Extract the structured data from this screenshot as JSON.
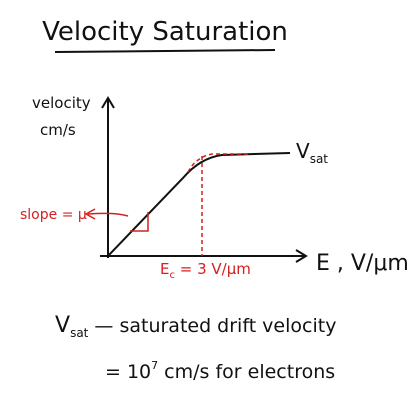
{
  "title": "Velocity Saturation",
  "y_axis": {
    "line1": "velocity",
    "line2": "cm/s"
  },
  "x_axis": "E , V/μm",
  "curve_label": {
    "main": "V",
    "sub": "sat"
  },
  "slope_label": "slope = μ",
  "critical_field": {
    "main": "E",
    "sub": "c",
    "rest": " = 3 V/μm"
  },
  "definition": {
    "symbol": "V",
    "sub": "sat",
    "text": " — saturated drift velocity"
  },
  "value_line": {
    "base": "= 10",
    "sup": "7",
    "rest": " cm/s  for electrons"
  }
}
